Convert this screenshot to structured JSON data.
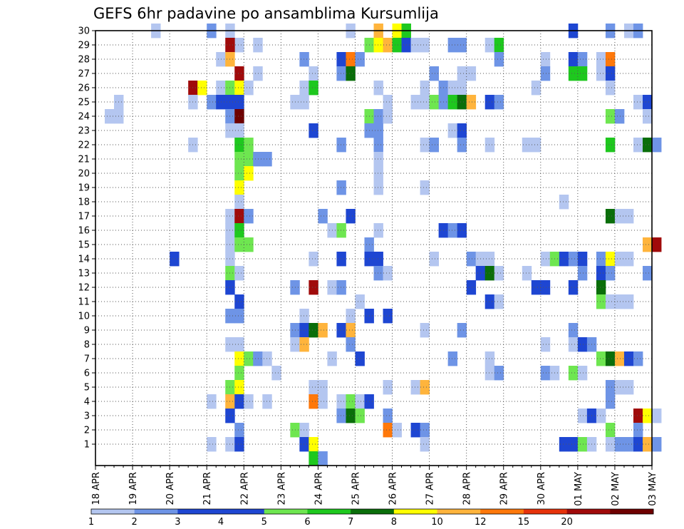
{
  "chart_data": {
    "type": "heatmap",
    "title": "GEFS 6hr padavine po ansamblima Kursumlija",
    "xlabel": "",
    "ylabel": "",
    "x_tick_labels": [
      "18 APR",
      "19 APR",
      "20 APR",
      "21 APR",
      "22 APR",
      "23 APR",
      "24 APR",
      "25 APR",
      "26 APR",
      "27 APR",
      "28 APR",
      "29 APR",
      "30 APR",
      "01 MAY",
      "02 MAY",
      "03 MAY"
    ],
    "y_tick_labels": [
      "1",
      "2",
      "3",
      "4",
      "5",
      "6",
      "7",
      "8",
      "9",
      "10",
      "11",
      "12",
      "13",
      "14",
      "15",
      "16",
      "17",
      "18",
      "19",
      "20",
      "21",
      "22",
      "23",
      "24",
      "25",
      "26",
      "27",
      "28",
      "29",
      "30"
    ],
    "ensemble_members": 30,
    "time_step_hours": 6,
    "grid": true,
    "colorbar": {
      "position": "bottom",
      "labels": [
        "1",
        "2",
        "3",
        "4",
        "5",
        "6",
        "7",
        "8",
        "10",
        "12",
        "15",
        "20"
      ],
      "colors": [
        "#b4c6f0",
        "#6e94e6",
        "#1e46d2",
        "#1e46d2",
        "#6ee650",
        "#1ec81e",
        "#0a6e0a",
        "#ffff00",
        "#ffb43c",
        "#ff780a",
        "#e6320a",
        "#a00a0a",
        "#6e0000"
      ]
    },
    "cell_legend": "cells: [member, day_offset (0 = 18 APR 00Z, step 0.25), class]; class index selects colorbar.colors",
    "cells": [
      [
        30,
        1.5,
        0
      ],
      [
        30,
        3.0,
        1
      ],
      [
        30,
        3.5,
        0
      ],
      [
        30,
        6.75,
        0
      ],
      [
        30,
        7.5,
        8
      ],
      [
        30,
        8.0,
        7
      ],
      [
        30,
        8.25,
        5
      ],
      [
        30,
        12.75,
        2
      ],
      [
        30,
        13.75,
        1
      ],
      [
        30,
        14.25,
        0
      ],
      [
        30,
        14.5,
        1
      ],
      [
        29,
        3.75,
        0
      ],
      [
        29,
        3.5,
        11
      ],
      [
        29,
        4.25,
        0
      ],
      [
        29,
        7.25,
        4
      ],
      [
        29,
        7.5,
        7
      ],
      [
        29,
        7.75,
        8
      ],
      [
        29,
        8.0,
        5
      ],
      [
        29,
        8.25,
        2
      ],
      [
        29,
        8.5,
        0
      ],
      [
        29,
        8.75,
        0
      ],
      [
        29,
        9.5,
        1
      ],
      [
        29,
        9.75,
        1
      ],
      [
        29,
        10.5,
        0
      ],
      [
        29,
        10.75,
        5
      ],
      [
        28,
        3.25,
        0
      ],
      [
        28,
        3.5,
        8
      ],
      [
        28,
        5.5,
        1
      ],
      [
        28,
        6.5,
        2
      ],
      [
        28,
        6.75,
        9
      ],
      [
        28,
        7.0,
        1
      ],
      [
        28,
        10.75,
        1
      ],
      [
        28,
        12.0,
        0
      ],
      [
        28,
        12.75,
        2
      ],
      [
        28,
        13.0,
        1
      ],
      [
        28,
        13.5,
        0
      ],
      [
        28,
        13.75,
        9
      ],
      [
        27,
        3.75,
        11
      ],
      [
        27,
        4.25,
        0
      ],
      [
        27,
        5.75,
        0
      ],
      [
        27,
        6.5,
        1
      ],
      [
        27,
        6.75,
        6
      ],
      [
        27,
        9.0,
        1
      ],
      [
        27,
        9.75,
        0
      ],
      [
        27,
        10.0,
        0
      ],
      [
        27,
        12.0,
        1
      ],
      [
        27,
        12.75,
        5
      ],
      [
        27,
        13.0,
        5
      ],
      [
        27,
        13.5,
        0
      ],
      [
        27,
        13.75,
        2
      ],
      [
        26,
        2.5,
        11
      ],
      [
        26,
        2.75,
        7
      ],
      [
        26,
        3.25,
        0
      ],
      [
        26,
        3.5,
        4
      ],
      [
        26,
        3.75,
        7
      ],
      [
        26,
        4.0,
        0
      ],
      [
        26,
        5.5,
        0
      ],
      [
        26,
        5.75,
        5
      ],
      [
        26,
        7.5,
        0
      ],
      [
        26,
        8.75,
        0
      ],
      [
        26,
        9.25,
        1
      ],
      [
        26,
        9.5,
        0
      ],
      [
        26,
        9.75,
        0
      ],
      [
        26,
        11.75,
        0
      ],
      [
        26,
        13.75,
        0
      ],
      [
        25,
        0.5,
        0
      ],
      [
        25,
        2.5,
        0
      ],
      [
        25,
        3.0,
        1
      ],
      [
        25,
        3.25,
        2
      ],
      [
        25,
        3.5,
        2
      ],
      [
        25,
        3.75,
        2
      ],
      [
        25,
        5.25,
        0
      ],
      [
        25,
        5.5,
        0
      ],
      [
        25,
        7.75,
        0
      ],
      [
        25,
        8.5,
        0
      ],
      [
        25,
        8.75,
        0
      ],
      [
        25,
        9.0,
        4
      ],
      [
        25,
        9.25,
        1
      ],
      [
        25,
        9.5,
        5
      ],
      [
        25,
        9.75,
        6
      ],
      [
        25,
        10.0,
        8
      ],
      [
        25,
        10.5,
        2
      ],
      [
        25,
        10.75,
        1
      ],
      [
        25,
        14.5,
        0
      ],
      [
        25,
        14.75,
        2
      ],
      [
        24,
        0.25,
        0
      ],
      [
        24,
        0.5,
        0
      ],
      [
        24,
        3.5,
        1
      ],
      [
        24,
        3.75,
        12
      ],
      [
        24,
        7.25,
        4
      ],
      [
        24,
        7.5,
        1
      ],
      [
        24,
        7.75,
        0
      ],
      [
        24,
        13.75,
        4
      ],
      [
        24,
        14.0,
        1
      ],
      [
        24,
        14.75,
        0
      ],
      [
        23,
        3.5,
        0
      ],
      [
        23,
        3.75,
        0
      ],
      [
        23,
        5.75,
        2
      ],
      [
        23,
        7.25,
        1
      ],
      [
        23,
        7.5,
        1
      ],
      [
        23,
        9.5,
        0
      ],
      [
        23,
        9.75,
        2
      ],
      [
        22,
        2.5,
        0
      ],
      [
        22,
        3.75,
        5
      ],
      [
        22,
        4.0,
        4
      ],
      [
        22,
        6.5,
        1
      ],
      [
        22,
        7.5,
        1
      ],
      [
        22,
        8.75,
        0
      ],
      [
        22,
        9.0,
        1
      ],
      [
        22,
        9.75,
        1
      ],
      [
        22,
        10.5,
        0
      ],
      [
        22,
        11.5,
        0
      ],
      [
        22,
        11.75,
        0
      ],
      [
        22,
        13.75,
        5
      ],
      [
        22,
        14.5,
        0
      ],
      [
        22,
        14.75,
        6
      ],
      [
        22,
        15.0,
        1
      ],
      [
        21,
        3.75,
        4
      ],
      [
        21,
        4.0,
        4
      ],
      [
        21,
        4.25,
        1
      ],
      [
        21,
        4.5,
        1
      ],
      [
        21,
        7.5,
        0
      ],
      [
        20,
        3.75,
        4
      ],
      [
        20,
        4.0,
        7
      ],
      [
        20,
        7.5,
        0
      ],
      [
        19,
        3.75,
        7
      ],
      [
        19,
        6.5,
        1
      ],
      [
        19,
        7.5,
        0
      ],
      [
        19,
        8.75,
        0
      ],
      [
        18,
        3.75,
        0
      ],
      [
        18,
        12.5,
        0
      ],
      [
        17,
        3.5,
        0
      ],
      [
        17,
        3.75,
        11
      ],
      [
        17,
        4.0,
        1
      ],
      [
        17,
        6.0,
        1
      ],
      [
        17,
        6.75,
        2
      ],
      [
        17,
        13.75,
        6
      ],
      [
        17,
        14.0,
        0
      ],
      [
        17,
        14.25,
        0
      ],
      [
        16,
        3.5,
        0
      ],
      [
        16,
        3.75,
        5
      ],
      [
        16,
        6.25,
        0
      ],
      [
        16,
        6.5,
        4
      ],
      [
        16,
        7.5,
        0
      ],
      [
        16,
        9.25,
        2
      ],
      [
        16,
        9.5,
        1
      ],
      [
        16,
        9.75,
        2
      ],
      [
        15,
        3.5,
        0
      ],
      [
        15,
        3.75,
        4
      ],
      [
        15,
        4.0,
        4
      ],
      [
        15,
        7.25,
        1
      ],
      [
        15,
        14.75,
        8
      ],
      [
        15,
        15.0,
        11
      ],
      [
        14,
        2.0,
        2
      ],
      [
        14,
        3.5,
        0
      ],
      [
        14,
        5.75,
        0
      ],
      [
        14,
        6.5,
        2
      ],
      [
        14,
        7.25,
        2
      ],
      [
        14,
        7.5,
        2
      ],
      [
        14,
        9.0,
        0
      ],
      [
        14,
        10.0,
        1
      ],
      [
        14,
        10.25,
        0
      ],
      [
        14,
        10.5,
        0
      ],
      [
        14,
        12.0,
        0
      ],
      [
        14,
        12.25,
        4
      ],
      [
        14,
        12.5,
        2
      ],
      [
        14,
        12.75,
        1
      ],
      [
        14,
        13.0,
        2
      ],
      [
        14,
        13.5,
        1
      ],
      [
        14,
        13.75,
        7
      ],
      [
        14,
        14.0,
        0
      ],
      [
        14,
        14.25,
        0
      ],
      [
        13,
        3.5,
        4
      ],
      [
        13,
        3.75,
        0
      ],
      [
        13,
        7.5,
        1
      ],
      [
        13,
        7.75,
        0
      ],
      [
        13,
        10.25,
        2
      ],
      [
        13,
        10.5,
        6
      ],
      [
        13,
        10.75,
        0
      ],
      [
        13,
        11.5,
        0
      ],
      [
        13,
        13.0,
        1
      ],
      [
        13,
        13.5,
        2
      ],
      [
        13,
        13.75,
        1
      ],
      [
        13,
        14.75,
        1
      ],
      [
        12,
        3.5,
        2
      ],
      [
        12,
        5.25,
        1
      ],
      [
        12,
        5.75,
        11
      ],
      [
        12,
        6.25,
        0
      ],
      [
        12,
        6.5,
        1
      ],
      [
        12,
        10.0,
        2
      ],
      [
        12,
        11.75,
        2
      ],
      [
        12,
        12.0,
        2
      ],
      [
        12,
        12.75,
        2
      ],
      [
        12,
        13.5,
        6
      ],
      [
        11,
        3.75,
        2
      ],
      [
        11,
        7.0,
        0
      ],
      [
        11,
        10.5,
        2
      ],
      [
        11,
        10.75,
        0
      ],
      [
        11,
        13.5,
        4
      ],
      [
        11,
        13.75,
        0
      ],
      [
        11,
        14.0,
        0
      ],
      [
        11,
        14.25,
        0
      ],
      [
        10,
        3.5,
        1
      ],
      [
        10,
        3.75,
        1
      ],
      [
        10,
        5.5,
        0
      ],
      [
        10,
        6.75,
        0
      ],
      [
        10,
        7.25,
        2
      ],
      [
        10,
        7.75,
        2
      ],
      [
        9,
        5.25,
        1
      ],
      [
        9,
        5.5,
        2
      ],
      [
        9,
        5.75,
        6
      ],
      [
        9,
        6.0,
        8
      ],
      [
        9,
        6.5,
        2
      ],
      [
        9,
        6.75,
        8
      ],
      [
        9,
        8.75,
        0
      ],
      [
        9,
        9.75,
        1
      ],
      [
        9,
        12.75,
        1
      ],
      [
        8,
        3.5,
        0
      ],
      [
        8,
        3.75,
        0
      ],
      [
        8,
        5.25,
        0
      ],
      [
        8,
        5.5,
        8
      ],
      [
        8,
        6.75,
        1
      ],
      [
        8,
        12.0,
        0
      ],
      [
        8,
        12.75,
        0
      ],
      [
        8,
        13.0,
        2
      ],
      [
        8,
        13.25,
        1
      ],
      [
        7,
        3.75,
        7
      ],
      [
        7,
        4.0,
        4
      ],
      [
        7,
        4.25,
        1
      ],
      [
        7,
        4.5,
        0
      ],
      [
        7,
        6.25,
        0
      ],
      [
        7,
        7.0,
        2
      ],
      [
        7,
        9.5,
        1
      ],
      [
        7,
        10.5,
        0
      ],
      [
        7,
        13.5,
        4
      ],
      [
        7,
        13.75,
        6
      ],
      [
        7,
        14.0,
        8
      ],
      [
        7,
        14.25,
        2
      ],
      [
        7,
        14.5,
        1
      ],
      [
        6,
        3.75,
        4
      ],
      [
        6,
        4.75,
        0
      ],
      [
        6,
        10.5,
        0
      ],
      [
        6,
        10.75,
        1
      ],
      [
        6,
        12.0,
        1
      ],
      [
        6,
        12.25,
        0
      ],
      [
        6,
        12.75,
        4
      ],
      [
        6,
        13.0,
        0
      ],
      [
        5,
        3.5,
        4
      ],
      [
        5,
        3.75,
        7
      ],
      [
        5,
        5.75,
        0
      ],
      [
        5,
        6.0,
        0
      ],
      [
        5,
        7.75,
        0
      ],
      [
        5,
        8.5,
        0
      ],
      [
        5,
        8.75,
        8
      ],
      [
        5,
        13.75,
        1
      ],
      [
        5,
        14.0,
        0
      ],
      [
        5,
        14.25,
        0
      ],
      [
        4,
        3.0,
        0
      ],
      [
        4,
        3.5,
        8
      ],
      [
        4,
        3.75,
        2
      ],
      [
        4,
        4.0,
        0
      ],
      [
        4,
        4.5,
        0
      ],
      [
        4,
        5.75,
        9
      ],
      [
        4,
        6.0,
        0
      ],
      [
        4,
        6.5,
        0
      ],
      [
        4,
        6.75,
        4
      ],
      [
        4,
        7.0,
        0
      ],
      [
        4,
        7.25,
        2
      ],
      [
        4,
        13.75,
        1
      ],
      [
        3,
        3.5,
        2
      ],
      [
        3,
        6.5,
        1
      ],
      [
        3,
        6.75,
        6
      ],
      [
        3,
        7.0,
        4
      ],
      [
        3,
        7.75,
        1
      ],
      [
        3,
        13.0,
        0
      ],
      [
        3,
        13.25,
        2
      ],
      [
        3,
        13.5,
        0
      ],
      [
        3,
        14.5,
        11
      ],
      [
        3,
        14.75,
        7
      ],
      [
        3,
        15.0,
        0
      ],
      [
        2,
        3.75,
        1
      ],
      [
        2,
        5.25,
        4
      ],
      [
        2,
        5.5,
        0
      ],
      [
        2,
        7.75,
        9
      ],
      [
        2,
        8.0,
        0
      ],
      [
        2,
        8.5,
        2
      ],
      [
        2,
        8.75,
        1
      ],
      [
        2,
        13.75,
        4
      ],
      [
        2,
        14.5,
        1
      ],
      [
        1,
        3.0,
        0
      ],
      [
        1,
        3.5,
        0
      ],
      [
        1,
        3.75,
        2
      ],
      [
        1,
        5.5,
        2
      ],
      [
        1,
        5.75,
        7
      ],
      [
        1,
        8.75,
        0
      ],
      [
        1,
        12.5,
        2
      ],
      [
        1,
        12.75,
        2
      ],
      [
        1,
        13.0,
        4
      ],
      [
        1,
        13.25,
        0
      ],
      [
        1,
        13.75,
        0
      ],
      [
        1,
        14.0,
        1
      ],
      [
        1,
        14.25,
        1
      ],
      [
        1,
        14.5,
        2
      ],
      [
        1,
        14.75,
        8
      ],
      [
        1,
        15.0,
        1
      ],
      [
        0,
        5.75,
        5
      ],
      [
        0,
        6.0,
        1
      ]
    ]
  }
}
